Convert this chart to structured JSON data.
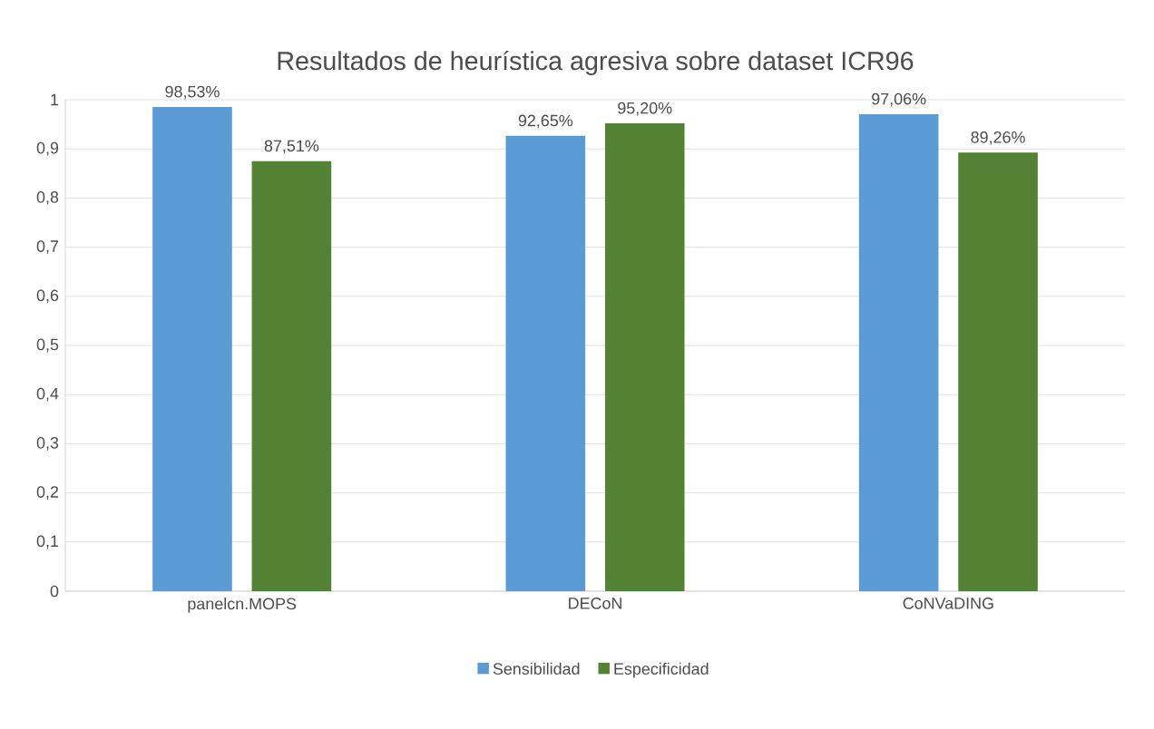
{
  "chart_data": {
    "type": "bar",
    "title": "Resultados de heurística agresiva sobre dataset ICR96",
    "categories": [
      "panelcn.MOPS",
      "DECoN",
      "CoNVaDING"
    ],
    "series": [
      {
        "name": "Sensibilidad",
        "color": "#5b9bd5",
        "values": [
          0.9853,
          0.9265,
          0.9706
        ],
        "value_labels": [
          "98,53%",
          "92,65%",
          "97,06%"
        ]
      },
      {
        "name": "Especificidad",
        "color": "#548235",
        "values": [
          0.8751,
          0.952,
          0.8926
        ],
        "value_labels": [
          "87,51%",
          "95,20%",
          "89,26%"
        ]
      }
    ],
    "ylim": [
      0,
      1
    ],
    "yticks": [
      0,
      {
        "value": 0.1,
        "label": "0,1"
      },
      {
        "value": 0.2,
        "label": "0,2"
      },
      {
        "value": 0.3,
        "label": "0,3"
      },
      {
        "value": 0.4,
        "label": "0,4"
      },
      {
        "value": 0.5,
        "label": "0,5"
      },
      {
        "value": 0.6,
        "label": "0,6"
      },
      {
        "value": 0.7,
        "label": "0,7"
      },
      {
        "value": 0.8,
        "label": "0,8"
      },
      {
        "value": 0.9,
        "label": "0,9"
      },
      1
    ],
    "grid": "y",
    "legend": "bottom"
  }
}
